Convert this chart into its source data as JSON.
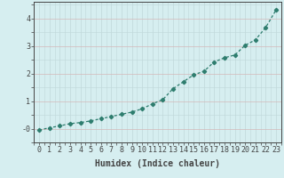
{
  "xlabel": "Humidex (Indice chaleur)",
  "x_values": [
    0,
    1,
    2,
    3,
    4,
    5,
    6,
    7,
    8,
    9,
    10,
    11,
    12,
    13,
    14,
    15,
    16,
    17,
    18,
    19,
    20,
    21,
    22,
    23
  ],
  "y_values": [
    -0.05,
    0.03,
    0.1,
    0.18,
    0.22,
    0.28,
    0.36,
    0.44,
    0.52,
    0.6,
    0.72,
    0.9,
    1.05,
    1.45,
    1.7,
    1.95,
    2.08,
    2.42,
    2.57,
    2.67,
    3.02,
    3.22,
    3.67,
    4.3
  ],
  "line_color": "#2e7d6e",
  "marker": "+",
  "marker_size": 4,
  "background_color": "#d6eef0",
  "grid_color": "#c0d8da",
  "grid_color_major_red": "#d4b8b8",
  "axes_color": "#444444",
  "ylim": [
    -0.5,
    4.6
  ],
  "xlim": [
    -0.5,
    23.5
  ],
  "yticks": [
    0,
    1,
    2,
    3,
    4
  ],
  "ytick_labels": [
    "-0",
    "1",
    "2",
    "3",
    "4"
  ],
  "xticks": [
    0,
    1,
    2,
    3,
    4,
    5,
    6,
    7,
    8,
    9,
    10,
    11,
    12,
    13,
    14,
    15,
    16,
    17,
    18,
    19,
    20,
    21,
    22,
    23
  ],
  "label_fontsize": 7.0,
  "tick_fontsize": 6.0,
  "linewidth": 0.9
}
